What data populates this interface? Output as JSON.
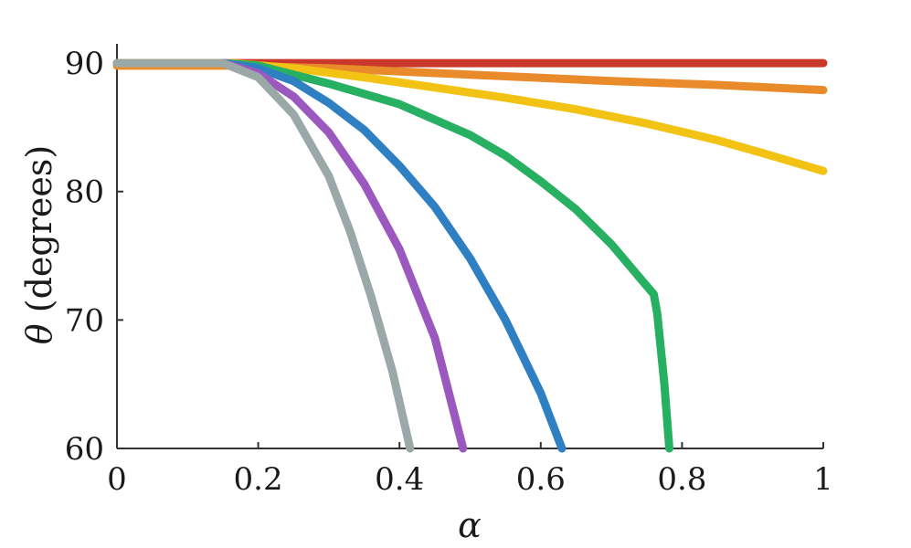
{
  "chart_data": {
    "type": "line",
    "xlabel": "α",
    "ylabel_symbol": "θ",
    "ylabel_text": "(degrees)",
    "xlim": [
      0,
      1
    ],
    "ylim": [
      60,
      91.5
    ],
    "xticks": [
      0,
      0.2,
      0.4,
      0.6,
      0.8,
      1
    ],
    "xtick_labels": [
      "0",
      "0.2",
      "0.4",
      "0.6",
      "0.8",
      "1"
    ],
    "yticks": [
      60,
      70,
      80,
      90
    ],
    "ytick_labels": [
      "60",
      "70",
      "80",
      "90"
    ],
    "grid": false,
    "series": [
      {
        "color": "#c9382a",
        "x": [
          0,
          0.2,
          0.4,
          0.6,
          0.8,
          1.0
        ],
        "y": [
          90,
          90,
          90,
          90,
          90,
          90
        ]
      },
      {
        "color": "#e98a2b",
        "x": [
          0,
          0.16,
          0.3,
          0.5,
          0.7,
          0.85,
          1.0
        ],
        "y": [
          89.8,
          89.8,
          89.6,
          89.1,
          88.6,
          88.3,
          87.9
        ]
      },
      {
        "color": "#f2c214",
        "x": [
          0,
          0.16,
          0.25,
          0.35,
          0.45,
          0.55,
          0.65,
          0.75,
          0.85,
          0.92,
          1.0
        ],
        "y": [
          90,
          90,
          89.6,
          88.9,
          88.1,
          87.3,
          86.4,
          85.3,
          84.0,
          82.9,
          81.6
        ]
      },
      {
        "color": "#27b062",
        "x": [
          0.15,
          0.2,
          0.3,
          0.4,
          0.5,
          0.55,
          0.6,
          0.65,
          0.7,
          0.74,
          0.76,
          0.765,
          0.775,
          0.782
        ],
        "y": [
          90,
          89.8,
          88.4,
          86.8,
          84.4,
          82.8,
          80.8,
          78.6,
          75.9,
          73.3,
          72.0,
          70.5,
          65.0,
          60
        ]
      },
      {
        "color": "#2e80c3",
        "x": [
          0.15,
          0.2,
          0.25,
          0.3,
          0.35,
          0.4,
          0.45,
          0.5,
          0.55,
          0.6,
          0.63
        ],
        "y": [
          90,
          89.6,
          88.6,
          86.9,
          84.8,
          82.0,
          78.8,
          74.8,
          70.0,
          64.3,
          60
        ]
      },
      {
        "color": "#9b58bf",
        "x": [
          0.15,
          0.2,
          0.25,
          0.3,
          0.35,
          0.4,
          0.45,
          0.49
        ],
        "y": [
          90,
          89.2,
          87.4,
          84.6,
          80.6,
          75.5,
          68.6,
          60
        ]
      },
      {
        "color": "#9ba8a8",
        "x": [
          0,
          0.15,
          0.2,
          0.25,
          0.3,
          0.33,
          0.36,
          0.39,
          0.415
        ],
        "y": [
          90,
          90,
          88.9,
          86.0,
          81.2,
          76.9,
          71.8,
          66.0,
          60
        ]
      }
    ]
  }
}
